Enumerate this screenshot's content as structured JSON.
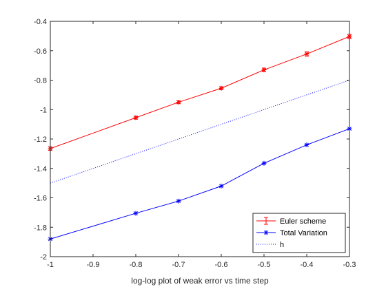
{
  "chart_data": {
    "type": "line",
    "title": "",
    "xlabel": "log-log plot of weak error vs time step",
    "ylabel": "",
    "xlim": [
      -1,
      -0.3
    ],
    "ylim": [
      -2,
      -0.4
    ],
    "x_ticks": [
      -1,
      -0.9,
      -0.8,
      -0.7,
      -0.6,
      -0.5,
      -0.4,
      -0.3
    ],
    "x_tick_labels": [
      "-1",
      "-0.9",
      "-0.8",
      "-0.7",
      "-0.6",
      "-0.5",
      "-0.4",
      "-0.3"
    ],
    "y_ticks": [
      -2,
      -1.8,
      -1.6,
      -1.4,
      -1.2,
      -1,
      -0.8,
      -0.6,
      -0.4
    ],
    "y_tick_labels": [
      "-2",
      "-1.8",
      "-1.6",
      "-1.4",
      "-1.2",
      "-1",
      "-0.8",
      "-0.6",
      "-0.4"
    ],
    "grid": false,
    "legend_position": "bottom-right",
    "series": [
      {
        "name": "Euler scheme",
        "color": "#ff0000",
        "marker": "errorbar",
        "line_style": "solid",
        "x": [
          -1,
          -0.8,
          -0.7,
          -0.6,
          -0.5,
          -0.4,
          -0.3
        ],
        "y": [
          -1.265,
          -1.055,
          -0.95,
          -0.855,
          -0.73,
          -0.622,
          -0.503
        ],
        "err": [
          0.012,
          0.01,
          0.01,
          0.01,
          0.012,
          0.015,
          0.015
        ]
      },
      {
        "name": "Total Variation",
        "color": "#0000ff",
        "marker": "asterisk",
        "line_style": "solid",
        "x": [
          -1,
          -0.8,
          -0.7,
          -0.6,
          -0.5,
          -0.4,
          -0.3
        ],
        "y": [
          -1.88,
          -1.705,
          -1.622,
          -1.52,
          -1.365,
          -1.24,
          -1.13
        ]
      },
      {
        "name": "h",
        "color": "#0000ff",
        "marker": "none",
        "line_style": "dotted",
        "x": [
          -1,
          -0.3
        ],
        "y": [
          -1.5,
          -0.8
        ]
      }
    ]
  }
}
